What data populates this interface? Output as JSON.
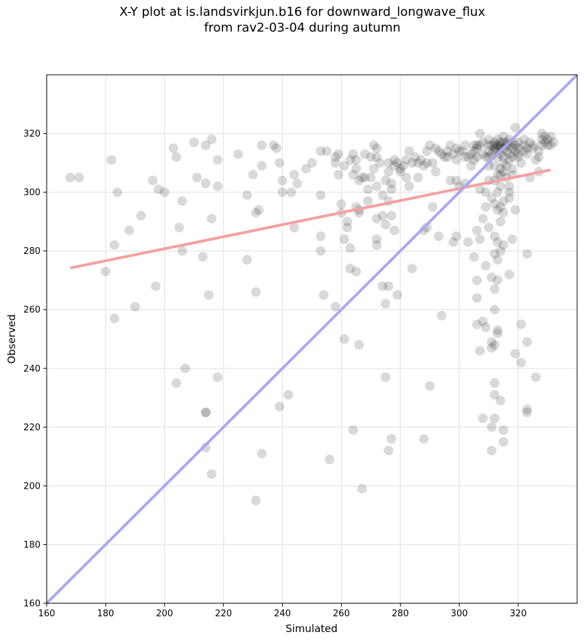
{
  "chart_data": {
    "type": "scatter",
    "title_line1": "X-Y plot at is.landsvirkjun.b16 for downward_longwave_flux",
    "title_line2": "from rav2-03-04 during autumn",
    "xlabel": "Simulated",
    "ylabel": "Observed",
    "xlim": [
      160,
      340
    ],
    "ylim": [
      160,
      340
    ],
    "xticks": [
      160,
      180,
      200,
      220,
      240,
      260,
      280,
      300,
      320
    ],
    "yticks": [
      160,
      180,
      200,
      220,
      240,
      260,
      280,
      300,
      320
    ],
    "grid": true,
    "point_color": "#000000",
    "point_alpha": 0.15,
    "fit_line_color": "#f4a0a0",
    "identity_line_color": "#a8a8f4",
    "fit_line": {
      "x": [
        168,
        331
      ],
      "y": [
        274.2,
        307.6
      ]
    },
    "identity_line": {
      "x": [
        160,
        340
      ],
      "y": [
        160,
        340
      ]
    },
    "points": [
      [
        168,
        305
      ],
      [
        171,
        305
      ],
      [
        182,
        311
      ],
      [
        184,
        300
      ],
      [
        183,
        282
      ],
      [
        180,
        273
      ],
      [
        183,
        257
      ],
      [
        188,
        287
      ],
      [
        192,
        292
      ],
      [
        190,
        261
      ],
      [
        196,
        304
      ],
      [
        198,
        301
      ],
      [
        200,
        300
      ],
      [
        197,
        268
      ],
      [
        203,
        315
      ],
      [
        204,
        312
      ],
      [
        206,
        297
      ],
      [
        205,
        288
      ],
      [
        206,
        280
      ],
      [
        204,
        235
      ],
      [
        207,
        240
      ],
      [
        210,
        317
      ],
      [
        211,
        305
      ],
      [
        213,
        278
      ],
      [
        214,
        316
      ],
      [
        214,
        303
      ],
      [
        216,
        318
      ],
      [
        216,
        291
      ],
      [
        215,
        265
      ],
      [
        218,
        311
      ],
      [
        218,
        302
      ],
      [
        218,
        237
      ],
      [
        214,
        225
      ],
      [
        214,
        225
      ],
      [
        214,
        213
      ],
      [
        216,
        204
      ],
      [
        225,
        313
      ],
      [
        228,
        299
      ],
      [
        228,
        277
      ],
      [
        230,
        306
      ],
      [
        231,
        293
      ],
      [
        231,
        266
      ],
      [
        232,
        294
      ],
      [
        233,
        316
      ],
      [
        233,
        309
      ],
      [
        237,
        316
      ],
      [
        238,
        315
      ],
      [
        239,
        310
      ],
      [
        240,
        304
      ],
      [
        240,
        300
      ],
      [
        243,
        300
      ],
      [
        244,
        306
      ],
      [
        245,
        303
      ],
      [
        244,
        288
      ],
      [
        242,
        231
      ],
      [
        239,
        227
      ],
      [
        233,
        211
      ],
      [
        231,
        195
      ],
      [
        248,
        308
      ],
      [
        250,
        310
      ],
      [
        253,
        314
      ],
      [
        253,
        299
      ],
      [
        253,
        285
      ],
      [
        253,
        280
      ],
      [
        254,
        265
      ],
      [
        255,
        314
      ],
      [
        258,
        312
      ],
      [
        259,
        313
      ],
      [
        259,
        306
      ],
      [
        260,
        296
      ],
      [
        260,
        293
      ],
      [
        261,
        284
      ],
      [
        261,
        250
      ],
      [
        258,
        261
      ],
      [
        256,
        209
      ],
      [
        262,
        290
      ],
      [
        262,
        288
      ],
      [
        263,
        281
      ],
      [
        263,
        274
      ],
      [
        264,
        306
      ],
      [
        264,
        313
      ],
      [
        265,
        308
      ],
      [
        266,
        304
      ],
      [
        265,
        311
      ],
      [
        265,
        295
      ],
      [
        266,
        294
      ],
      [
        266,
        293
      ],
      [
        265,
        273
      ],
      [
        266,
        248
      ],
      [
        264,
        219
      ],
      [
        267,
        199
      ],
      [
        268,
        305
      ],
      [
        269,
        301
      ],
      [
        269,
        297
      ],
      [
        270,
        312
      ],
      [
        270,
        305
      ],
      [
        271,
        316
      ],
      [
        272,
        315
      ],
      [
        272,
        302
      ],
      [
        273,
        310
      ],
      [
        272,
        284
      ],
      [
        272,
        282
      ],
      [
        272,
        291
      ],
      [
        271,
        308
      ],
      [
        274,
        299
      ],
      [
        274,
        292
      ],
      [
        275,
        304
      ],
      [
        276,
        307
      ],
      [
        276,
        297
      ],
      [
        275,
        289
      ],
      [
        274,
        268
      ],
      [
        276,
        268
      ],
      [
        275,
        262
      ],
      [
        275,
        237
      ],
      [
        276,
        212
      ],
      [
        277,
        216
      ],
      [
        277,
        303
      ],
      [
        277,
        301
      ],
      [
        278,
        309
      ],
      [
        278,
        287
      ],
      [
        277,
        292
      ],
      [
        279,
        310
      ],
      [
        279,
        265
      ],
      [
        280,
        308
      ],
      [
        281,
        309
      ],
      [
        282,
        311
      ],
      [
        283,
        314
      ],
      [
        283,
        302
      ],
      [
        284,
        310
      ],
      [
        284,
        274
      ],
      [
        285,
        312
      ],
      [
        286,
        305
      ],
      [
        287,
        311
      ],
      [
        288,
        309
      ],
      [
        288,
        287
      ],
      [
        289,
        314
      ],
      [
        289,
        288
      ],
      [
        290,
        316
      ],
      [
        291,
        310
      ],
      [
        291,
        295
      ],
      [
        292,
        315
      ],
      [
        292,
        307
      ],
      [
        293,
        314
      ],
      [
        293,
        285
      ],
      [
        294,
        258
      ],
      [
        290,
        234
      ],
      [
        288,
        216
      ],
      [
        295,
        312
      ],
      [
        296,
        314
      ],
      [
        297,
        316
      ],
      [
        297,
        304
      ],
      [
        298,
        313
      ],
      [
        299,
        315
      ],
      [
        299,
        311
      ],
      [
        299,
        304
      ],
      [
        298,
        283
      ],
      [
        299,
        285
      ],
      [
        300,
        302
      ],
      [
        301,
        314
      ],
      [
        302,
        316
      ],
      [
        302,
        312
      ],
      [
        302,
        303
      ],
      [
        303,
        283
      ],
      [
        304,
        309
      ],
      [
        305,
        314
      ],
      [
        305,
        311
      ],
      [
        306,
        316
      ],
      [
        307,
        316
      ],
      [
        306,
        312
      ],
      [
        307,
        301
      ],
      [
        307,
        284
      ],
      [
        306,
        287
      ],
      [
        305,
        278
      ],
      [
        306,
        270
      ],
      [
        306,
        264
      ],
      [
        306,
        255
      ],
      [
        307,
        246
      ],
      [
        308,
        223
      ],
      [
        308,
        291
      ],
      [
        308,
        256
      ],
      [
        309,
        254
      ],
      [
        309,
        275
      ],
      [
        309,
        295
      ],
      [
        309,
        300
      ],
      [
        310,
        316
      ],
      [
        310,
        314
      ],
      [
        310,
        312
      ],
      [
        310,
        309
      ],
      [
        310,
        304
      ],
      [
        310,
        288
      ],
      [
        311,
        313
      ],
      [
        311,
        298
      ],
      [
        311,
        271
      ],
      [
        311,
        249
      ],
      [
        311,
        247
      ],
      [
        311,
        220
      ],
      [
        311,
        212
      ],
      [
        312,
        316
      ],
      [
        312,
        317
      ],
      [
        312,
        314
      ],
      [
        312,
        309
      ],
      [
        312,
        296
      ],
      [
        312,
        285
      ],
      [
        312,
        279
      ],
      [
        312,
        267
      ],
      [
        312,
        260
      ],
      [
        312,
        248
      ],
      [
        312,
        235
      ],
      [
        312,
        231
      ],
      [
        312,
        223
      ],
      [
        313,
        318
      ],
      [
        313,
        315
      ],
      [
        313,
        312
      ],
      [
        313,
        306
      ],
      [
        313,
        300
      ],
      [
        313,
        294
      ],
      [
        313,
        283
      ],
      [
        313,
        277
      ],
      [
        313,
        270
      ],
      [
        313,
        253
      ],
      [
        313,
        252
      ],
      [
        314,
        317
      ],
      [
        314,
        316
      ],
      [
        314,
        313
      ],
      [
        314,
        308
      ],
      [
        314,
        302
      ],
      [
        314,
        295
      ],
      [
        314,
        290
      ],
      [
        314,
        280
      ],
      [
        314,
        229
      ],
      [
        315,
        319
      ],
      [
        315,
        317
      ],
      [
        315,
        315
      ],
      [
        315,
        312
      ],
      [
        315,
        310
      ],
      [
        315,
        307
      ],
      [
        315,
        297
      ],
      [
        315,
        293
      ],
      [
        315,
        282
      ],
      [
        315,
        219
      ],
      [
        315,
        215
      ],
      [
        316,
        316
      ],
      [
        316,
        314
      ],
      [
        316,
        309
      ],
      [
        317,
        318
      ],
      [
        317,
        316
      ],
      [
        317,
        313
      ],
      [
        317,
        311
      ],
      [
        317,
        302
      ],
      [
        317,
        300
      ],
      [
        317,
        298
      ],
      [
        317,
        272
      ],
      [
        318,
        317
      ],
      [
        318,
        315
      ],
      [
        318,
        312
      ],
      [
        318,
        306
      ],
      [
        318,
        284
      ],
      [
        319,
        316
      ],
      [
        319,
        314
      ],
      [
        319,
        322
      ],
      [
        319,
        294
      ],
      [
        319,
        245
      ],
      [
        320,
        317
      ],
      [
        320,
        315
      ],
      [
        320,
        313
      ],
      [
        321,
        255
      ],
      [
        321,
        242
      ],
      [
        322,
        316
      ],
      [
        322,
        314
      ],
      [
        323,
        315
      ],
      [
        323,
        313
      ],
      [
        323,
        279
      ],
      [
        323,
        249
      ],
      [
        323,
        226
      ],
      [
        323,
        225
      ],
      [
        324,
        317
      ],
      [
        324,
        305
      ],
      [
        325,
        316
      ],
      [
        326,
        311
      ],
      [
        326,
        237
      ],
      [
        327,
        307
      ],
      [
        327,
        314
      ],
      [
        328,
        320
      ],
      [
        328,
        318
      ],
      [
        328,
        316
      ],
      [
        329,
        319
      ],
      [
        329,
        317
      ],
      [
        330,
        318
      ],
      [
        331,
        316
      ],
      [
        331,
        319
      ],
      [
        332,
        317
      ],
      [
        305,
        316
      ],
      [
        306,
        315
      ],
      [
        308,
        313
      ],
      [
        309,
        312
      ],
      [
        311,
        316
      ],
      [
        312,
        315
      ],
      [
        313,
        316
      ],
      [
        314,
        315
      ],
      [
        316,
        317
      ],
      [
        310,
        318
      ],
      [
        308,
        317
      ],
      [
        307,
        320
      ],
      [
        304,
        313
      ],
      [
        303,
        312
      ],
      [
        300,
        314
      ],
      [
        296,
        312
      ],
      [
        294,
        313
      ],
      [
        289,
        310
      ],
      [
        286,
        310
      ],
      [
        282,
        305
      ],
      [
        280,
        307
      ],
      [
        278,
        311
      ],
      [
        276,
        310
      ],
      [
        272,
        312
      ],
      [
        268,
        313
      ],
      [
        267,
        305
      ],
      [
        263,
        311
      ],
      [
        261,
        309
      ],
      [
        258,
        310
      ],
      [
        320,
        312
      ],
      [
        322,
        318
      ],
      [
        325,
        315
      ],
      [
        327,
        312
      ],
      [
        330,
        316
      ],
      [
        321,
        310
      ],
      [
        318,
        308
      ],
      [
        316,
        305
      ],
      [
        314,
        306
      ],
      [
        312,
        304
      ]
    ]
  }
}
